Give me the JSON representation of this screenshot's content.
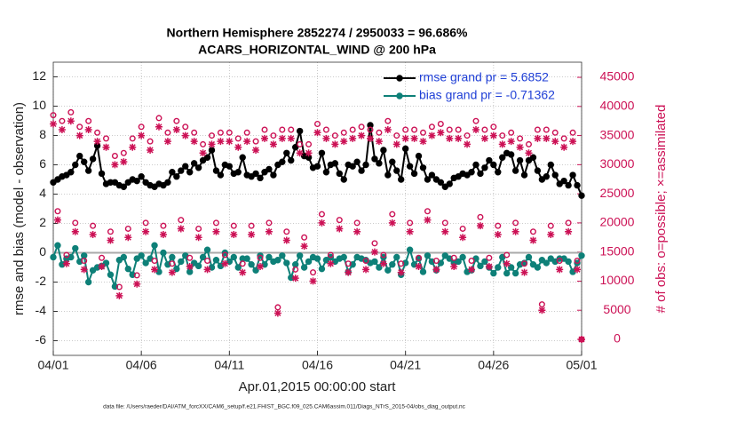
{
  "chart_data": {
    "type": "line",
    "title": "Northern Hemisphere 2852274 / 2950033 = 96.686%",
    "subtitle": "ACARS_HORIZONTAL_WIND @ 200 hPa",
    "xlabel": "Apr.01,2015 00:00:00 start",
    "ylabel": "rmse and bias (model - observation)",
    "y2label": "# of obs: o=possible; ×=assimilated",
    "footnote": "data file: /Users/raeder/DAI/ATM_forcXX/CAM6_setup/f.e21.FHIST_BGC.f09_025.CAM6assim.011/Diags_NTrS_2015-04/obs_diag_output.nc",
    "xlim": [
      0,
      30
    ],
    "xticks": [
      {
        "value": 0,
        "label": "04/01"
      },
      {
        "value": 5,
        "label": "04/06"
      },
      {
        "value": 10,
        "label": "04/11"
      },
      {
        "value": 15,
        "label": "04/16"
      },
      {
        "value": 20,
        "label": "04/21"
      },
      {
        "value": 25,
        "label": "04/26"
      },
      {
        "value": 30,
        "label": "05/01"
      }
    ],
    "ylim": [
      -7,
      13
    ],
    "yticks": [
      -6,
      -4,
      -2,
      0,
      2,
      4,
      6,
      8,
      10,
      12
    ],
    "y2lim": [
      -2750,
      47600
    ],
    "y2ticks": [
      0,
      5000,
      10000,
      15000,
      20000,
      25000,
      30000,
      35000,
      40000,
      45000
    ],
    "grid": true,
    "zero_line": true,
    "legend": "upper right",
    "legend_color": "#1f3fd6",
    "y2_color": "#cc1155",
    "x": [
      0,
      0.25,
      0.5,
      0.75,
      1,
      1.25,
      1.5,
      1.75,
      2,
      2.25,
      2.5,
      2.75,
      3,
      3.25,
      3.5,
      3.75,
      4,
      4.25,
      4.5,
      4.75,
      5,
      5.25,
      5.5,
      5.75,
      6,
      6.25,
      6.5,
      6.75,
      7,
      7.25,
      7.5,
      7.75,
      8,
      8.25,
      8.5,
      8.75,
      9,
      9.25,
      9.5,
      9.75,
      10,
      10.25,
      10.5,
      10.75,
      11,
      11.25,
      11.5,
      11.75,
      12,
      12.25,
      12.5,
      12.75,
      13,
      13.25,
      13.5,
      13.75,
      14,
      14.25,
      14.5,
      14.75,
      15,
      15.25,
      15.5,
      15.75,
      16,
      16.25,
      16.5,
      16.75,
      17,
      17.25,
      17.5,
      17.75,
      18,
      18.25,
      18.5,
      18.75,
      19,
      19.25,
      19.5,
      19.75,
      20,
      20.25,
      20.5,
      20.75,
      21,
      21.25,
      21.5,
      21.75,
      22,
      22.25,
      22.5,
      22.75,
      23,
      23.25,
      23.5,
      23.75,
      24,
      24.25,
      24.5,
      24.75,
      25,
      25.25,
      25.5,
      25.75,
      26,
      26.25,
      26.5,
      26.75,
      27,
      27.25,
      27.5,
      27.75,
      28,
      28.25,
      28.5,
      28.75,
      29,
      29.25,
      29.5,
      29.75,
      30
    ],
    "series": [
      {
        "name": "rmse grand pr = 5.6852",
        "color": "#000000",
        "marker": "circle",
        "line": true,
        "values": [
          4.8,
          5.0,
          5.2,
          5.3,
          5.5,
          6.0,
          6.6,
          6.2,
          5.6,
          6.4,
          7.3,
          5.4,
          4.7,
          4.8,
          4.8,
          4.6,
          4.5,
          4.8,
          5.0,
          4.9,
          5.2,
          4.8,
          4.6,
          4.5,
          4.7,
          4.6,
          4.8,
          5.5,
          5.2,
          5.6,
          5.9,
          5.5,
          6.1,
          5.8,
          6.3,
          6.5,
          7.0,
          5.6,
          5.3,
          6.0,
          5.9,
          5.4,
          5.5,
          6.5,
          5.3,
          5.2,
          5.4,
          5.1,
          5.5,
          5.7,
          5.3,
          6.0,
          6.2,
          6.8,
          6.3,
          7.2,
          8.3,
          6.6,
          6.5,
          5.8,
          5.9,
          6.8,
          5.5,
          6.0,
          6.1,
          5.4,
          5.0,
          6.0,
          5.9,
          6.2,
          5.6,
          6.0,
          8.7,
          6.4,
          6.1,
          7.0,
          5.3,
          6.2,
          5.6,
          5.0,
          7.1,
          5.9,
          5.4,
          6.6,
          5.8,
          5.0,
          5.3,
          5.0,
          4.8,
          4.5,
          4.7,
          5.1,
          5.2,
          5.4,
          5.3,
          5.5,
          6.0,
          5.4,
          5.8,
          6.3,
          6.0,
          5.5,
          6.5,
          6.8,
          6.7,
          5.6,
          6.3,
          5.3,
          6.3,
          6.5,
          5.6,
          5.0,
          5.2,
          6.0,
          5.3,
          4.7,
          4.9,
          4.6,
          5.3,
          4.6,
          3.9
        ]
      },
      {
        "name": "bias grand pr = -0.71362",
        "color": "#0e8078",
        "marker": "circle",
        "line": true,
        "values": [
          -0.3,
          0.5,
          -0.8,
          -0.4,
          -0.3,
          0.3,
          -0.6,
          -0.2,
          -2.0,
          -1.2,
          -1.0,
          -0.9,
          -0.7,
          -1.5,
          -2.3,
          -0.5,
          -0.3,
          -1.1,
          -1.5,
          -0.4,
          -0.2,
          -0.7,
          -0.4,
          0.5,
          -1.3,
          0.0,
          -0.8,
          -0.3,
          -1.1,
          -0.6,
          -0.2,
          -1.3,
          -0.7,
          -0.9,
          -0.3,
          0.2,
          -1.0,
          -0.5,
          -0.9,
          0.0,
          -0.6,
          -0.3,
          -1.0,
          -0.4,
          -0.4,
          -0.8,
          -1.2,
          -0.2,
          -0.8,
          -0.3,
          -0.6,
          -0.5,
          -0.2,
          -0.7,
          -1.7,
          -0.8,
          -0.2,
          -1.0,
          -0.6,
          -0.3,
          -0.4,
          -1.1,
          -0.5,
          -0.3,
          -0.6,
          -0.4,
          -0.3,
          -1.3,
          -0.8,
          -0.3,
          -0.4,
          -0.5,
          -0.7,
          -0.6,
          -1.0,
          -0.3,
          -1.2,
          -0.8,
          -0.3,
          -1.5,
          -0.7,
          0.2,
          -0.8,
          -0.4,
          -1.3,
          -0.2,
          -0.6,
          -1.2,
          -0.7,
          -0.2,
          -0.4,
          -0.7,
          -0.6,
          -0.3,
          -1.3,
          -1.2,
          -0.4,
          -0.9,
          -0.6,
          -1.0,
          -1.4,
          -1.0,
          -0.3,
          -1.4,
          -1.0,
          -1.4,
          -0.8,
          -0.7,
          -0.3,
          -0.8,
          -1.0,
          -0.5,
          -0.7,
          -0.4,
          -0.6,
          -0.4,
          -0.4,
          -0.6,
          -1.3,
          -0.7,
          -0.2
        ]
      },
      {
        "color": "#cc1155",
        "marker": "ring",
        "line": false,
        "axis": "y2",
        "values": [
          38500,
          22000,
          37500,
          14500,
          39000,
          20000,
          36500,
          13500,
          37500,
          19500,
          35500,
          14000,
          34500,
          18500,
          31500,
          9000,
          32000,
          19000,
          34500,
          11000,
          36500,
          20000,
          34000,
          13500,
          38000,
          19500,
          35500,
          13000,
          37500,
          20500,
          36500,
          14000,
          35500,
          19000,
          33500,
          13500,
          35000,
          20000,
          35500,
          14500,
          35500,
          19500,
          34500,
          13000,
          35500,
          19500,
          34000,
          14000,
          36000,
          20000,
          35000,
          5500,
          36000,
          18500,
          36000,
          12000,
          33500,
          17500,
          33500,
          11500,
          37000,
          21500,
          36000,
          14500,
          35000,
          20500,
          35500,
          13000,
          36000,
          20000,
          36500,
          13500,
          36000,
          16500,
          35500,
          14500,
          37500,
          21500,
          35000,
          13000,
          36000,
          20000,
          36000,
          14000,
          35500,
          22000,
          36500,
          13500,
          37000,
          20000,
          36000,
          14000,
          36000,
          19000,
          35000,
          13500,
          37500,
          21000,
          36000,
          14000,
          36500,
          19500,
          35000,
          14500,
          35500,
          20000,
          34500,
          13000,
          33500,
          18500,
          36000,
          6000,
          36000,
          19500,
          35500,
          13500,
          34500,
          20000,
          35500,
          13500,
          0
        ]
      },
      {
        "color": "#cc1155",
        "marker": "asterisk",
        "line": false,
        "axis": "y2",
        "values": [
          37000,
          20500,
          36000,
          13000,
          37500,
          18500,
          35000,
          12000,
          36000,
          18000,
          34000,
          12500,
          33000,
          17000,
          30000,
          7500,
          30500,
          17500,
          33000,
          9500,
          35000,
          18500,
          32500,
          12000,
          36500,
          18000,
          34000,
          11500,
          36000,
          19000,
          35000,
          12500,
          34000,
          17500,
          32000,
          12000,
          33500,
          18500,
          34000,
          13000,
          34000,
          18000,
          33000,
          11500,
          34000,
          18000,
          32500,
          12500,
          34500,
          18500,
          33500,
          4500,
          34500,
          17000,
          34500,
          10500,
          32000,
          16000,
          32000,
          10000,
          35500,
          20000,
          34500,
          13000,
          33500,
          19000,
          34000,
          11500,
          34500,
          18500,
          35000,
          12000,
          34500,
          15000,
          34000,
          13000,
          36000,
          20000,
          33500,
          11500,
          34500,
          18500,
          34500,
          12500,
          34000,
          20500,
          35000,
          12000,
          35500,
          18500,
          34500,
          12500,
          34500,
          17500,
          33500,
          12000,
          36000,
          19500,
          34500,
          12500,
          35000,
          18000,
          33500,
          13000,
          34000,
          18500,
          33000,
          11500,
          32000,
          17000,
          34500,
          5000,
          34500,
          18000,
          34000,
          12000,
          33000,
          18500,
          34000,
          12000,
          0
        ]
      }
    ]
  }
}
